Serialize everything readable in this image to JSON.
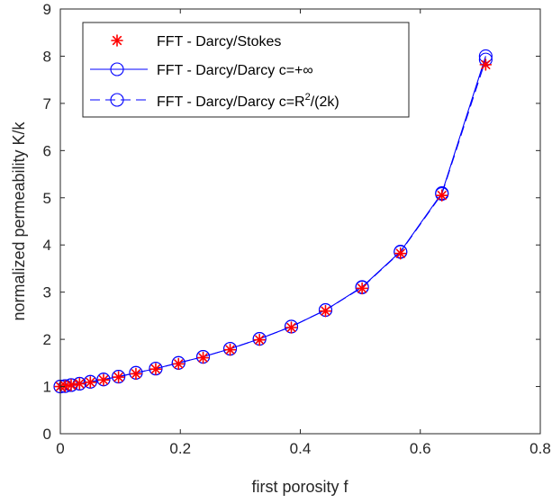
{
  "chart_data": {
    "type": "line",
    "title": "",
    "xlabel": "first porosity f",
    "ylabel": "normalized permeability K/k",
    "xlim": [
      0,
      0.8
    ],
    "ylim": [
      0,
      9
    ],
    "xticks": [
      0,
      0.2,
      0.4,
      0.6,
      0.8
    ],
    "yticks": [
      0,
      1,
      2,
      3,
      4,
      5,
      6,
      7,
      8,
      9
    ],
    "xtick_labels": [
      "0",
      "0.2",
      "0.4",
      "0.6",
      "0.8"
    ],
    "ytick_labels": [
      "0",
      "1",
      "2",
      "3",
      "4",
      "5",
      "6",
      "7",
      "8",
      "9"
    ],
    "grid": false,
    "legend_position": "top-left",
    "series": [
      {
        "name": "FFT - Darcy/Stokes",
        "marker": "asterisk",
        "line": "none",
        "color": "#ff0000",
        "x": [
          0.0,
          0.008,
          0.018,
          0.032,
          0.05,
          0.072,
          0.097,
          0.126,
          0.159,
          0.197,
          0.238,
          0.283,
          0.332,
          0.385,
          0.442,
          0.503,
          0.567,
          0.636,
          0.709
        ],
        "y": [
          1.0,
          1.01,
          1.03,
          1.06,
          1.09,
          1.14,
          1.2,
          1.27,
          1.37,
          1.48,
          1.61,
          1.78,
          1.99,
          2.25,
          2.6,
          3.08,
          3.82,
          5.05,
          7.82
        ]
      },
      {
        "name": "FFT - Darcy/Darcy c=+∞",
        "marker": "circle",
        "line": "solid",
        "color": "#0000ff",
        "x": [
          0.0,
          0.008,
          0.018,
          0.032,
          0.05,
          0.072,
          0.097,
          0.126,
          0.159,
          0.197,
          0.238,
          0.283,
          0.332,
          0.385,
          0.442,
          0.503,
          0.567,
          0.636,
          0.709
        ],
        "y": [
          1.0,
          1.01,
          1.03,
          1.06,
          1.1,
          1.15,
          1.21,
          1.29,
          1.38,
          1.5,
          1.63,
          1.8,
          2.01,
          2.27,
          2.62,
          3.11,
          3.86,
          5.1,
          8.0
        ]
      },
      {
        "name": "FFT - Darcy/Darcy c=R²/(2k)",
        "marker": "circle",
        "line": "dashed",
        "color": "#0000ff",
        "x": [
          0.0,
          0.008,
          0.018,
          0.032,
          0.05,
          0.072,
          0.097,
          0.126,
          0.159,
          0.197,
          0.238,
          0.283,
          0.332,
          0.385,
          0.442,
          0.503,
          0.567,
          0.636,
          0.709
        ],
        "y": [
          1.0,
          1.01,
          1.03,
          1.06,
          1.1,
          1.15,
          1.21,
          1.29,
          1.38,
          1.5,
          1.63,
          1.8,
          2.01,
          2.27,
          2.62,
          3.1,
          3.85,
          5.08,
          7.93
        ]
      }
    ],
    "legend": {
      "entries": [
        {
          "label": "FFT - Darcy/Stokes"
        },
        {
          "label": "FFT - Darcy/Darcy c=+∞"
        },
        {
          "label_prefix": "FFT - Darcy/Darcy c=R",
          "label_sup": "2",
          "label_suffix": "/(2k)"
        }
      ]
    }
  }
}
